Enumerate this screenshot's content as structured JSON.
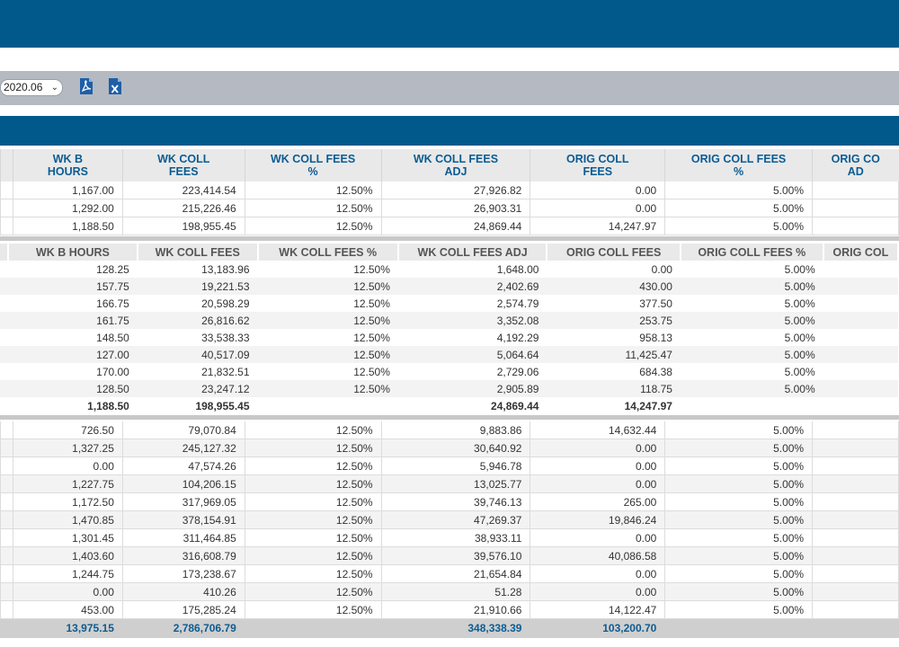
{
  "toolbar": {
    "period": "2020.06",
    "pdf_icon": "pdf-file-icon",
    "excel_icon": "excel-file-icon"
  },
  "table1": {
    "headers": [
      "WK B\nHOURS",
      "WK COLL\nFEES",
      "WK COLL FEES\n%",
      "WK COLL FEES\nADJ",
      "ORIG COLL\nFEES",
      "ORIG COLL FEES\n%",
      "ORIG CO\nAD"
    ],
    "rows": [
      [
        "1,167.00",
        "223,414.54",
        "12.50%",
        "27,926.82",
        "0.00",
        "5.00%",
        ""
      ],
      [
        "1,292.00",
        "215,226.46",
        "12.50%",
        "26,903.31",
        "0.00",
        "5.00%",
        ""
      ],
      [
        "1,188.50",
        "198,955.45",
        "12.50%",
        "24,869.44",
        "14,247.97",
        "5.00%",
        ""
      ]
    ]
  },
  "table2": {
    "headers": [
      "WK B HOURS",
      "WK COLL FEES",
      "WK COLL FEES %",
      "WK COLL FEES ADJ",
      "ORIG COLL FEES",
      "ORIG COLL FEES %",
      "ORIG COL"
    ],
    "rows": [
      [
        "128.25",
        "13,183.96",
        "12.50%",
        "1,648.00",
        "0.00",
        "5.00%",
        ""
      ],
      [
        "157.75",
        "19,221.53",
        "12.50%",
        "2,402.69",
        "430.00",
        "5.00%",
        ""
      ],
      [
        "166.75",
        "20,598.29",
        "12.50%",
        "2,574.79",
        "377.50",
        "5.00%",
        ""
      ],
      [
        "161.75",
        "26,816.62",
        "12.50%",
        "3,352.08",
        "253.75",
        "5.00%",
        ""
      ],
      [
        "148.50",
        "33,538.33",
        "12.50%",
        "4,192.29",
        "958.13",
        "5.00%",
        ""
      ],
      [
        "127.00",
        "40,517.09",
        "12.50%",
        "5,064.64",
        "11,425.47",
        "5.00%",
        ""
      ],
      [
        "170.00",
        "21,832.51",
        "12.50%",
        "2,729.06",
        "684.38",
        "5.00%",
        ""
      ],
      [
        "128.50",
        "23,247.12",
        "12.50%",
        "2,905.89",
        "118.75",
        "5.00%",
        ""
      ]
    ],
    "total": [
      "1,188.50",
      "198,955.45",
      "",
      "24,869.44",
      "14,247.97",
      "",
      ""
    ]
  },
  "table3": {
    "rows": [
      [
        "726.50",
        "79,070.84",
        "12.50%",
        "9,883.86",
        "14,632.44",
        "5.00%",
        ""
      ],
      [
        "1,327.25",
        "245,127.32",
        "12.50%",
        "30,640.92",
        "0.00",
        "5.00%",
        ""
      ],
      [
        "0.00",
        "47,574.26",
        "12.50%",
        "5,946.78",
        "0.00",
        "5.00%",
        ""
      ],
      [
        "1,227.75",
        "104,206.15",
        "12.50%",
        "13,025.77",
        "0.00",
        "5.00%",
        ""
      ],
      [
        "1,172.50",
        "317,969.05",
        "12.50%",
        "39,746.13",
        "265.00",
        "5.00%",
        ""
      ],
      [
        "1,470.85",
        "378,154.91",
        "12.50%",
        "47,269.37",
        "19,846.24",
        "5.00%",
        ""
      ],
      [
        "1,301.45",
        "311,464.85",
        "12.50%",
        "38,933.11",
        "0.00",
        "5.00%",
        ""
      ],
      [
        "1,403.60",
        "316,608.79",
        "12.50%",
        "39,576.10",
        "40,086.58",
        "5.00%",
        ""
      ],
      [
        "1,244.75",
        "173,238.67",
        "12.50%",
        "21,654.84",
        "0.00",
        "5.00%",
        ""
      ],
      [
        "0.00",
        "410.26",
        "12.50%",
        "51.28",
        "0.00",
        "5.00%",
        ""
      ],
      [
        "453.00",
        "175,285.24",
        "12.50%",
        "21,910.66",
        "14,122.47",
        "5.00%",
        ""
      ]
    ],
    "total": [
      "13,975.15",
      "2,786,706.79",
      "",
      "348,338.39",
      "103,200.70",
      "",
      ""
    ]
  }
}
